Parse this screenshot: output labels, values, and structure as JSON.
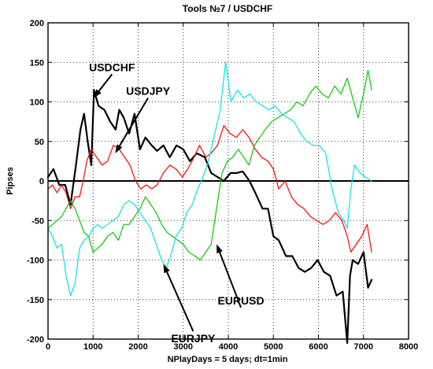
{
  "chart_data": {
    "type": "line",
    "title": "Tools  №7 / USDCHF",
    "xlabel": "NPlayDays = 5 days;  dt=1min",
    "ylabel": "Pipses",
    "xlim": [
      0,
      8000
    ],
    "ylim": [
      -200,
      200
    ],
    "x_ticks": [
      0,
      1000,
      2000,
      3000,
      4000,
      5000,
      6000,
      7000,
      8000
    ],
    "y_ticks": [
      -200,
      -150,
      -100,
      -50,
      0,
      50,
      100,
      150,
      200
    ],
    "x_tick_labels": [
      "0",
      "1000",
      "2000",
      "3000",
      "4000",
      "5000",
      "6000",
      "7000",
      "8000"
    ],
    "y_tick_labels": [
      "-200",
      "-150",
      "-100",
      "-50",
      "0",
      "50",
      "100",
      "150",
      "200"
    ],
    "grid": true,
    "zero_line": true,
    "series": [
      {
        "name": "USDCHF",
        "color": "#000000",
        "points": [
          [
            0,
            5
          ],
          [
            120,
            15
          ],
          [
            250,
            -5
          ],
          [
            380,
            -5
          ],
          [
            500,
            -30
          ],
          [
            620,
            20
          ],
          [
            720,
            65
          ],
          [
            800,
            85
          ],
          [
            880,
            50
          ],
          [
            960,
            20
          ],
          [
            1020,
            115
          ],
          [
            1120,
            95
          ],
          [
            1250,
            90
          ],
          [
            1380,
            75
          ],
          [
            1500,
            65
          ],
          [
            1580,
            90
          ],
          [
            1680,
            80
          ],
          [
            1800,
            60
          ],
          [
            1920,
            85
          ],
          [
            2040,
            40
          ],
          [
            2160,
            55
          ],
          [
            2300,
            45
          ],
          [
            2420,
            38
          ],
          [
            2560,
            45
          ],
          [
            2700,
            30
          ],
          [
            2850,
            45
          ],
          [
            3000,
            40
          ],
          [
            3150,
            25
          ],
          [
            3300,
            35
          ],
          [
            3480,
            30
          ],
          [
            3620,
            10
          ],
          [
            3760,
            5
          ],
          [
            3900,
            0
          ],
          [
            4050,
            10
          ],
          [
            4180,
            10
          ],
          [
            4320,
            12
          ],
          [
            4470,
            0
          ],
          [
            4600,
            -15
          ],
          [
            4760,
            -35
          ],
          [
            4880,
            -35
          ],
          [
            5000,
            -70
          ],
          [
            5120,
            -75
          ],
          [
            5280,
            -95
          ],
          [
            5420,
            -95
          ],
          [
            5560,
            -110
          ],
          [
            5700,
            -115
          ],
          [
            5840,
            -110
          ],
          [
            5980,
            -100
          ],
          [
            6120,
            -115
          ],
          [
            6260,
            -120
          ],
          [
            6400,
            -145
          ],
          [
            6540,
            -140
          ],
          [
            6640,
            -205
          ],
          [
            6700,
            -120
          ],
          [
            6760,
            -100
          ],
          [
            6880,
            -105
          ],
          [
            7000,
            -90
          ],
          [
            7100,
            -135
          ],
          [
            7180,
            -125
          ]
        ]
      },
      {
        "name": "USDJPY",
        "color": "#ff0000",
        "points": [
          [
            0,
            -10
          ],
          [
            100,
            -5
          ],
          [
            200,
            -15
          ],
          [
            300,
            -5
          ],
          [
            400,
            -15
          ],
          [
            500,
            -35
          ],
          [
            600,
            -20
          ],
          [
            700,
            -20
          ],
          [
            780,
            0
          ],
          [
            860,
            25
          ],
          [
            960,
            40
          ],
          [
            1080,
            30
          ],
          [
            1200,
            20
          ],
          [
            1320,
            25
          ],
          [
            1450,
            45
          ],
          [
            1580,
            40
          ],
          [
            1700,
            30
          ],
          [
            1820,
            20
          ],
          [
            1940,
            0
          ],
          [
            2060,
            -10
          ],
          [
            2180,
            -5
          ],
          [
            2300,
            -10
          ],
          [
            2420,
            -5
          ],
          [
            2560,
            10
          ],
          [
            2700,
            20
          ],
          [
            2840,
            15
          ],
          [
            2980,
            5
          ],
          [
            3100,
            15
          ],
          [
            3240,
            30
          ],
          [
            3360,
            45
          ],
          [
            3500,
            30
          ],
          [
            3620,
            35
          ],
          [
            3760,
            45
          ],
          [
            3900,
            70
          ],
          [
            4040,
            60
          ],
          [
            4180,
            55
          ],
          [
            4320,
            65
          ],
          [
            4460,
            55
          ],
          [
            4600,
            40
          ],
          [
            4740,
            30
          ],
          [
            4880,
            25
          ],
          [
            5000,
            15
          ],
          [
            5120,
            -10
          ],
          [
            5260,
            0
          ],
          [
            5400,
            -20
          ],
          [
            5540,
            -30
          ],
          [
            5680,
            -35
          ],
          [
            5820,
            -45
          ],
          [
            5960,
            -50
          ],
          [
            6100,
            -55
          ],
          [
            6240,
            -50
          ],
          [
            6380,
            -40
          ],
          [
            6520,
            -50
          ],
          [
            6640,
            -70
          ],
          [
            6720,
            -90
          ],
          [
            6840,
            -80
          ],
          [
            6960,
            -70
          ],
          [
            7080,
            -55
          ],
          [
            7180,
            -90
          ]
        ]
      },
      {
        "name": "EURUSD",
        "color": "#00cc00",
        "points": [
          [
            0,
            -60
          ],
          [
            100,
            -55
          ],
          [
            200,
            -50
          ],
          [
            300,
            -45
          ],
          [
            400,
            -35
          ],
          [
            500,
            -25
          ],
          [
            600,
            -35
          ],
          [
            700,
            -50
          ],
          [
            800,
            -65
          ],
          [
            900,
            -70
          ],
          [
            1000,
            -90
          ],
          [
            1100,
            -85
          ],
          [
            1200,
            -80
          ],
          [
            1320,
            -70
          ],
          [
            1440,
            -65
          ],
          [
            1560,
            -75
          ],
          [
            1680,
            -55
          ],
          [
            1800,
            -55
          ],
          [
            1920,
            -45
          ],
          [
            2040,
            -35
          ],
          [
            2160,
            -20
          ],
          [
            2280,
            -30
          ],
          [
            2400,
            -40
          ],
          [
            2520,
            -55
          ],
          [
            2640,
            -65
          ],
          [
            2760,
            -70
          ],
          [
            2880,
            -75
          ],
          [
            3000,
            -80
          ],
          [
            3120,
            -90
          ],
          [
            3260,
            -95
          ],
          [
            3380,
            -100
          ],
          [
            3500,
            -90
          ],
          [
            3620,
            -80
          ],
          [
            3740,
            -35
          ],
          [
            3860,
            10
          ],
          [
            3980,
            25
          ],
          [
            4100,
            30
          ],
          [
            4220,
            40
          ],
          [
            4340,
            30
          ],
          [
            4460,
            20
          ],
          [
            4580,
            45
          ],
          [
            4700,
            55
          ],
          [
            4820,
            65
          ],
          [
            4960,
            75
          ],
          [
            5100,
            80
          ],
          [
            5240,
            85
          ],
          [
            5380,
            90
          ],
          [
            5520,
            100
          ],
          [
            5660,
            95
          ],
          [
            5800,
            110
          ],
          [
            5940,
            120
          ],
          [
            6080,
            110
          ],
          [
            6220,
            105
          ],
          [
            6360,
            120
          ],
          [
            6500,
            110
          ],
          [
            6640,
            130
          ],
          [
            6760,
            105
          ],
          [
            6880,
            80
          ],
          [
            7000,
            110
          ],
          [
            7100,
            140
          ],
          [
            7180,
            115
          ]
        ]
      },
      {
        "name": "EURJPY",
        "color": "#00e5e5",
        "points": [
          [
            0,
            -60
          ],
          [
            100,
            -70
          ],
          [
            200,
            -85
          ],
          [
            300,
            -80
          ],
          [
            400,
            -120
          ],
          [
            500,
            -145
          ],
          [
            600,
            -130
          ],
          [
            700,
            -85
          ],
          [
            800,
            -75
          ],
          [
            900,
            -70
          ],
          [
            1000,
            -60
          ],
          [
            1100,
            -55
          ],
          [
            1200,
            -60
          ],
          [
            1320,
            -55
          ],
          [
            1440,
            -50
          ],
          [
            1560,
            -45
          ],
          [
            1680,
            -30
          ],
          [
            1800,
            -25
          ],
          [
            1920,
            -30
          ],
          [
            2040,
            -40
          ],
          [
            2160,
            -50
          ],
          [
            2280,
            -60
          ],
          [
            2400,
            -80
          ],
          [
            2520,
            -100
          ],
          [
            2620,
            -110
          ],
          [
            2720,
            -95
          ],
          [
            2840,
            -70
          ],
          [
            2960,
            -60
          ],
          [
            3080,
            -40
          ],
          [
            3200,
            -30
          ],
          [
            3320,
            -10
          ],
          [
            3440,
            5
          ],
          [
            3560,
            25
          ],
          [
            3700,
            60
          ],
          [
            3820,
            90
          ],
          [
            3940,
            150
          ],
          [
            4060,
            100
          ],
          [
            4200,
            115
          ],
          [
            4340,
            105
          ],
          [
            4480,
            110
          ],
          [
            4620,
            100
          ],
          [
            4760,
            95
          ],
          [
            4900,
            90
          ],
          [
            5040,
            95
          ],
          [
            5180,
            85
          ],
          [
            5320,
            80
          ],
          [
            5460,
            75
          ],
          [
            5600,
            60
          ],
          [
            5740,
            50
          ],
          [
            5880,
            45
          ],
          [
            6020,
            45
          ],
          [
            6160,
            35
          ],
          [
            6300,
            -10
          ],
          [
            6440,
            -40
          ],
          [
            6560,
            -50
          ],
          [
            6640,
            -60
          ],
          [
            6720,
            -10
          ],
          [
            6800,
            20
          ],
          [
            6920,
            10
          ],
          [
            7040,
            5
          ],
          [
            7180,
            0
          ]
        ]
      }
    ],
    "annotations": [
      {
        "label": "USDCHF",
        "tx": 1420,
        "ty": 135,
        "ax": 1010,
        "ay": 105
      },
      {
        "label": "USDJPY",
        "tx": 2220,
        "ty": 105,
        "ax": 1490,
        "ay": 35
      },
      {
        "label": "EURUSD",
        "tx": 4280,
        "ty": -160,
        "ax": 3740,
        "ay": -80
      },
      {
        "label": "EURJPY",
        "tx": 3220,
        "ty": -190,
        "ax": 2560,
        "ay": -105
      }
    ]
  }
}
